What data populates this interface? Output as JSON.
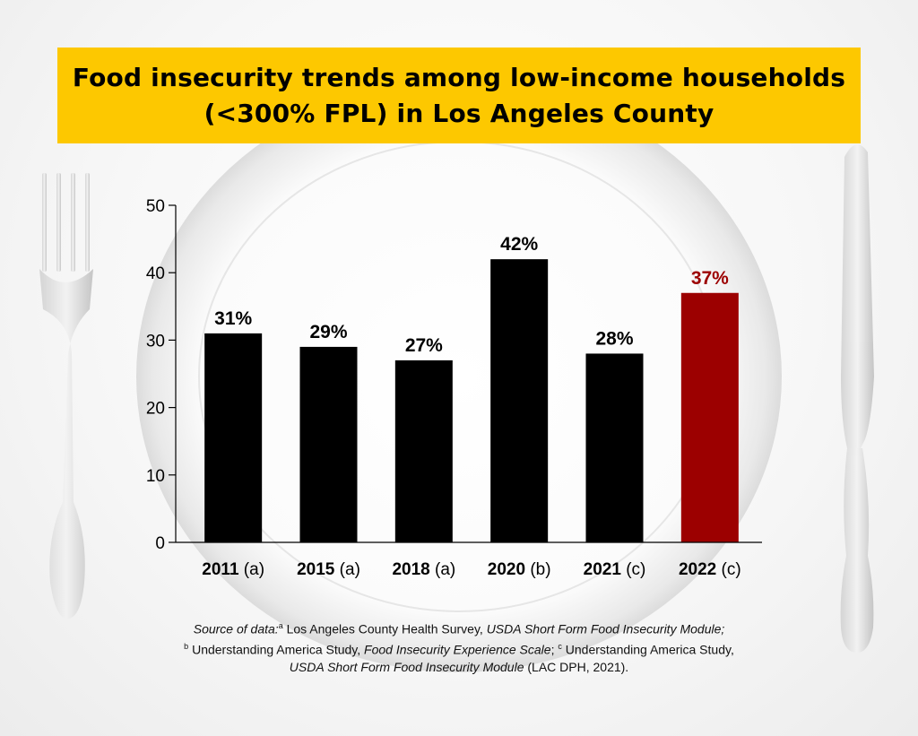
{
  "title": {
    "line1": "Food insecurity trends among low-income households",
    "line2": "(<300% FPL) in Los Angeles County"
  },
  "colors": {
    "title_bg": "#fdc800",
    "bar": "#000000",
    "highlight_bar": "#9c0000",
    "highlight_label": "#9c0000"
  },
  "icons": {
    "left": "fork-icon",
    "center": "plate-icon",
    "right": "knife-icon"
  },
  "chart_data": {
    "type": "bar",
    "categories": [
      "2011",
      "2015",
      "2018",
      "2020",
      "2021",
      "2022"
    ],
    "category_notes": [
      "(a)",
      "(a)",
      "(a)",
      "(b)",
      "(c)",
      "(c)"
    ],
    "values": [
      31,
      29,
      27,
      42,
      28,
      37
    ],
    "value_labels": [
      "31%",
      "29%",
      "27%",
      "42%",
      "28%",
      "37%"
    ],
    "highlight_index": 5,
    "ylim": [
      0,
      50
    ],
    "yticks": [
      0,
      10,
      20,
      30,
      40,
      50
    ],
    "grid": false,
    "title": "Food insecurity trends among low-income households (<300% FPL) in Los Angeles County",
    "xlabel": "",
    "ylabel": ""
  },
  "source": {
    "line1_italic_prefix": "Source of data:",
    "line1_sup": "a",
    "line1_text": " Los Angeles County Health Survey, ",
    "line1_italic": "USDA Short Form Food Insecurity Module;",
    "line2_sup_b": "b",
    "line2_text1": " Understanding America Study, ",
    "line2_italic": "Food Insecurity Experience Scale",
    "line2_text2": "; ",
    "line2_sup_c": "c",
    "line2_text3": " Understanding America Study,",
    "line3_italic": "USDA Short Form Food Insecurity Module",
    "line3_text": " (LAC DPH, 2021)."
  }
}
